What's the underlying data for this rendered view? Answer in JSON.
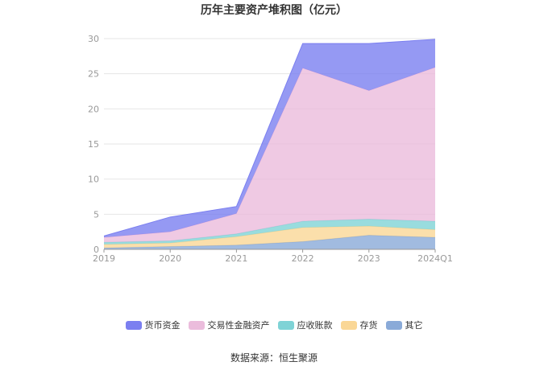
{
  "chart_data": {
    "type": "area",
    "stacked": true,
    "title": "历年主要资产堆积图（亿元）",
    "categories": [
      "2019",
      "2020",
      "2021",
      "2022",
      "2023",
      "2024Q1"
    ],
    "ylim": [
      0,
      30
    ],
    "yticks": [
      0,
      5,
      10,
      15,
      20,
      25,
      30
    ],
    "grid": true,
    "legend_position": "bottom",
    "series": [
      {
        "name": "其它",
        "color": "#8aaad8",
        "values": [
          0.2,
          0.4,
          0.6,
          1.1,
          2.0,
          1.7
        ]
      },
      {
        "name": "存货",
        "color": "#fad796",
        "values": [
          0.5,
          0.5,
          1.2,
          2.0,
          1.3,
          1.1
        ]
      },
      {
        "name": "应收账款",
        "color": "#7fd3d6",
        "values": [
          0.3,
          0.3,
          0.4,
          0.9,
          1.0,
          1.2
        ]
      },
      {
        "name": "交易性金融资产",
        "color": "#ebbcdc",
        "values": [
          0.7,
          1.3,
          2.9,
          21.8,
          18.3,
          21.9
        ]
      },
      {
        "name": "货币资金",
        "color": "#7b7ff0",
        "values": [
          0.2,
          2.1,
          1.0,
          3.5,
          6.7,
          4.0
        ]
      }
    ]
  },
  "source_text": "数据来源：恒生聚源"
}
